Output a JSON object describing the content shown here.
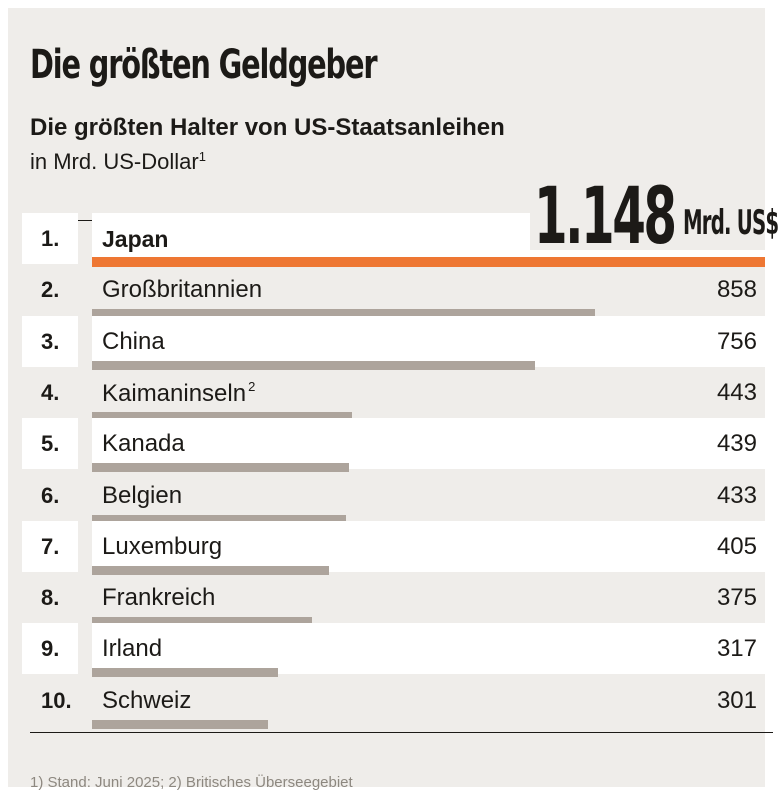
{
  "title": "Die größten Geldgeber",
  "subtitle": "Die größten Halter von US-Staatsanleihen",
  "unit": {
    "text": "in Mrd. US-Dollar",
    "note": "1"
  },
  "highlight": {
    "value": "1.148",
    "unit": "Mrd. US$"
  },
  "footnote": "1) Stand: Juni 2025; 2) Britisches Überseegebiet",
  "colors": {
    "background": "#efedea",
    "bar": "#ada49c",
    "lead_bar": "#ee7733",
    "text": "#1c1a17"
  },
  "chart_data": {
    "type": "bar",
    "orientation": "horizontal",
    "title": "Die größten Geldgeber",
    "subtitle": "Die größten Halter von US-Staatsanleihen",
    "unit": "in Mrd. US-Dollar",
    "xlim": [
      0,
      1148
    ],
    "rows": [
      {
        "rank": "1.",
        "country": "Japan",
        "note": "",
        "value": 1148,
        "label": "1.148 Mrd. US$"
      },
      {
        "rank": "2.",
        "country": "Großbritannien",
        "note": "",
        "value": 858,
        "label": "858"
      },
      {
        "rank": "3.",
        "country": "China",
        "note": "",
        "value": 756,
        "label": "756"
      },
      {
        "rank": "4.",
        "country": "Kaimaninseln",
        "note": "2",
        "value": 443,
        "label": "443"
      },
      {
        "rank": "5.",
        "country": "Kanada",
        "note": "",
        "value": 439,
        "label": "439"
      },
      {
        "rank": "6.",
        "country": "Belgien",
        "note": "",
        "value": 433,
        "label": "433"
      },
      {
        "rank": "7.",
        "country": "Luxemburg",
        "note": "",
        "value": 405,
        "label": "405"
      },
      {
        "rank": "8.",
        "country": "Frankreich",
        "note": "",
        "value": 375,
        "label": "375"
      },
      {
        "rank": "9.",
        "country": "Irland",
        "note": "",
        "value": 317,
        "label": "317"
      },
      {
        "rank": "10.",
        "country": "Schweiz",
        "note": "",
        "value": 301,
        "label": "301"
      }
    ]
  }
}
